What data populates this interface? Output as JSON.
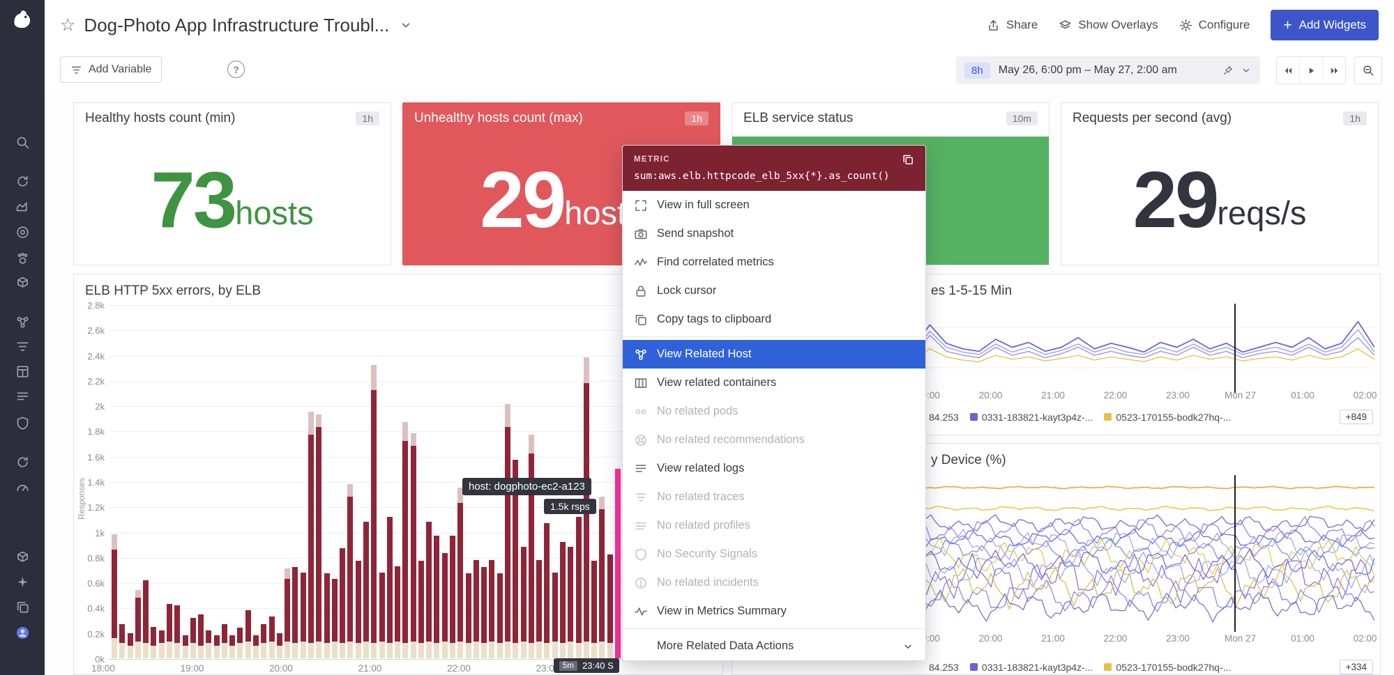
{
  "icons": {
    "star": "☆",
    "help": "?",
    "plus": "+",
    "caret": "▾"
  },
  "header": {
    "title": "Dog-Photo App Infrastructure Troubl...",
    "share": "Share",
    "show_overlays": "Show Overlays",
    "configure": "Configure",
    "add_widgets": "Add Widgets"
  },
  "toolbar": {
    "add_variable": "Add Variable"
  },
  "timebar": {
    "range": "8h",
    "dates": "May 26, 6:00 pm – May 27, 2:00 am"
  },
  "sidebar": {
    "items": [
      "search",
      "watchdog",
      "metrics",
      "monitors",
      "integrations",
      "infrastructure",
      "hosts",
      "apm",
      "dashboards",
      "logs",
      "security",
      "synthetics",
      "rum",
      "organization",
      "upgrade",
      "help-docs",
      "user-account"
    ]
  },
  "tiles": [
    {
      "title": "Healthy hosts count (min)",
      "badge": "1h",
      "value": "73",
      "unit": "hosts"
    },
    {
      "title": "Unhealthy hosts count (max)",
      "badge": "1h",
      "value": "29",
      "unit": "hosts"
    },
    {
      "title": "ELB service status",
      "badge": "10m",
      "value": "",
      "unit": ""
    },
    {
      "title": "Requests per second (avg)",
      "badge": "1h",
      "value": "29",
      "unit": "reqs/s"
    }
  ],
  "menu": {
    "header_label": "METRIC",
    "query": "sum:aws.elb.httpcode_elb_5xx{*}.as_count()",
    "items": [
      {
        "label": "View in full screen",
        "icon": "fullscreen",
        "state": "normal"
      },
      {
        "label": "Send snapshot",
        "icon": "camera",
        "state": "normal"
      },
      {
        "label": "Find correlated metrics",
        "icon": "correlate",
        "state": "normal"
      },
      {
        "label": "Lock cursor",
        "icon": "lock",
        "state": "normal"
      },
      {
        "label": "Copy tags to clipboard",
        "icon": "copy",
        "state": "normal",
        "divider_after": true
      },
      {
        "label": "View Related Host",
        "icon": "host",
        "state": "selected"
      },
      {
        "label": "View related containers",
        "icon": "containers",
        "state": "normal"
      },
      {
        "label": "No related pods",
        "icon": "pods",
        "state": "disabled"
      },
      {
        "label": "No related recommendations",
        "icon": "recommend",
        "state": "disabled"
      },
      {
        "label": "View related logs",
        "icon": "logs",
        "state": "normal"
      },
      {
        "label": "No related traces",
        "icon": "traces",
        "state": "disabled"
      },
      {
        "label": "No related profiles",
        "icon": "profiles",
        "state": "disabled"
      },
      {
        "label": "No Security Signals",
        "icon": "security",
        "state": "disabled"
      },
      {
        "label": "No related incidents",
        "icon": "incidents",
        "state": "disabled"
      },
      {
        "label": "View in Metrics Summary",
        "icon": "metrics",
        "state": "normal",
        "divider_after": true
      },
      {
        "label": "More Related Data Actions",
        "icon": "chevron",
        "state": "more"
      }
    ]
  },
  "chart_5xx": {
    "type": "bar",
    "title": "ELB HTTP 5xx errors, by ELB",
    "ylabel": "Responses",
    "ylim": [
      0,
      2.8
    ],
    "y_ticks": [
      "2.8k",
      "2.6k",
      "2.4k",
      "2.2k",
      "2k",
      "1.8k",
      "1.6k",
      "1.4k",
      "1.2k",
      "1k",
      "0.8k",
      "0.6k",
      "0.4k",
      "0.2k",
      "0k"
    ],
    "x_ticks": [
      "18:00",
      "19:00",
      "20:00",
      "21:00",
      "22:00",
      "23:00"
    ],
    "tooltip": {
      "host": "host: dogphoto-ec2-a123",
      "value": "1.5k rsps",
      "rollup": "5m",
      "time": "23:40 S"
    },
    "colors": {
      "maroon": "#8e2538",
      "cream": "#eadfca",
      "top": "#dcc0c0",
      "highlight": "#ff2f9e"
    },
    "bars_maroon": [
      0.7,
      0.15,
      0.1,
      0.35,
      0.5,
      0.15,
      0.1,
      0.3,
      0.3,
      0.08,
      0.2,
      0.25,
      0.1,
      0.08,
      0.15,
      0.08,
      0.12,
      0.25,
      0.08,
      0.15,
      0.2,
      0.1,
      0.5,
      0.6,
      0.55,
      1.65,
      1.7,
      0.55,
      0.5,
      0.75,
      1.15,
      0.65,
      0.95,
      2.0,
      0.55,
      1.0,
      0.6,
      1.6,
      1.55,
      0.65,
      0.95,
      0.85,
      0.7,
      0.85,
      1.1,
      0.55,
      0.65,
      0.6,
      0.65,
      0.55,
      1.7,
      1.45,
      0.75,
      1.5,
      0.65,
      0.95,
      0.55,
      0.8,
      0.75,
      1.0,
      2.05,
      0.65,
      1.05,
      0.7,
      0
    ],
    "bars_cream": [
      0.16,
      0.12,
      0.1,
      0.13,
      0.12,
      0.1,
      0.12,
      0.13,
      0.12,
      0.1,
      0.12,
      0.1,
      0.12,
      0.1,
      0.12,
      0.1,
      0.12,
      0.13,
      0.1,
      0.12,
      0.13,
      0.1,
      0.13,
      0.12,
      0.13,
      0.12,
      0.13,
      0.12,
      0.13,
      0.12,
      0.13,
      0.12,
      0.13,
      0.12,
      0.13,
      0.12,
      0.13,
      0.12,
      0.13,
      0.12,
      0.13,
      0.12,
      0.13,
      0.12,
      0.13,
      0.12,
      0.13,
      0.12,
      0.13,
      0.12,
      0.13,
      0.12,
      0.13,
      0.12,
      0.13,
      0.12,
      0.13,
      0.12,
      0.13,
      0.12,
      0.13,
      0.12,
      0.13,
      0.12,
      0
    ],
    "bars_top": [
      0.12,
      0,
      0,
      0.06,
      0,
      0,
      0,
      0,
      0,
      0,
      0,
      0,
      0,
      0,
      0,
      0,
      0,
      0,
      0,
      0,
      0,
      0,
      0.08,
      0,
      0,
      0.18,
      0.1,
      0,
      0,
      0,
      0.1,
      0,
      0,
      0.2,
      0,
      0,
      0,
      0.15,
      0.1,
      0,
      0,
      0,
      0,
      0,
      0.12,
      0,
      0,
      0,
      0,
      0,
      0.18,
      0,
      0,
      0.15,
      0,
      0,
      0,
      0,
      0,
      0,
      0.2,
      0,
      0.1,
      0,
      0
    ],
    "highlight": {
      "index": 64,
      "value": 1.5
    }
  },
  "chart_load": {
    "type": "line",
    "title": "es 1-5-15 Min",
    "x_ticks": [
      "19:00",
      "20:00",
      "21:00",
      "22:00",
      "23:00",
      "Mon 27",
      "01:00",
      "02:00"
    ],
    "legend": [
      {
        "label": "84.253",
        "swatch": null
      },
      {
        "label": "0331-183821-kayt3p4z-...",
        "swatch": "#6f5ed8"
      },
      {
        "label": "0523-170155-bodk27hq-...",
        "swatch": "#e2c247"
      }
    ],
    "overflow": "+849",
    "series": [
      {
        "color": "#6a5be0",
        "values": [
          0.52,
          0.4,
          0.58,
          0.35,
          0.5,
          0.3,
          0.55,
          0.48,
          0.38,
          0.6,
          0.15,
          0.5,
          0.22,
          0.45,
          0.52,
          0.55,
          0.4,
          0.5,
          0.44,
          0.55,
          0.5,
          0.38,
          0.52,
          0.45,
          0.5,
          0.56,
          0.44,
          0.5,
          0.4,
          0.52,
          0.45,
          0.56,
          0.5,
          0.44,
          0.5,
          0.38,
          0.52,
          0.45,
          0.18,
          0.5
        ]
      },
      {
        "color": "#9d92ee",
        "values": [
          0.62,
          0.55,
          0.66,
          0.5,
          0.6,
          0.45,
          0.62,
          0.56,
          0.5,
          0.66,
          0.4,
          0.6,
          0.35,
          0.55,
          0.6,
          0.63,
          0.5,
          0.6,
          0.55,
          0.63,
          0.58,
          0.5,
          0.6,
          0.55,
          0.6,
          0.63,
          0.55,
          0.6,
          0.5,
          0.6,
          0.55,
          0.63,
          0.58,
          0.55,
          0.6,
          0.5,
          0.6,
          0.55,
          0.38,
          0.6
        ]
      },
      {
        "color": "#e5c64b",
        "values": [
          0.68,
          0.62,
          0.7,
          0.6,
          0.66,
          0.57,
          0.67,
          0.62,
          0.6,
          0.68,
          0.57,
          0.65,
          0.52,
          0.62,
          0.66,
          0.68,
          0.6,
          0.65,
          0.62,
          0.67,
          0.64,
          0.6,
          0.66,
          0.62,
          0.65,
          0.68,
          0.62,
          0.66,
          0.6,
          0.65,
          0.62,
          0.67,
          0.64,
          0.62,
          0.66,
          0.6,
          0.65,
          0.62,
          0.52,
          0.65
        ]
      },
      {
        "color": "#8fa6f0",
        "values": [
          0.58,
          0.5,
          0.62,
          0.46,
          0.56,
          0.42,
          0.58,
          0.52,
          0.46,
          0.62,
          0.3,
          0.56,
          0.3,
          0.5,
          0.56,
          0.59,
          0.46,
          0.56,
          0.5,
          0.59,
          0.54,
          0.46,
          0.56,
          0.5,
          0.56,
          0.59,
          0.5,
          0.56,
          0.46,
          0.56,
          0.5,
          0.59,
          0.54,
          0.5,
          0.56,
          0.46,
          0.56,
          0.5,
          0.28,
          0.56
        ]
      }
    ]
  },
  "chart_device": {
    "type": "line",
    "title": "y Device (%)",
    "x_ticks": [
      "19:00",
      "20:00",
      "21:00",
      "22:00",
      "23:00",
      "Mon 27",
      "01:00",
      "02:00"
    ],
    "legend": [
      {
        "label": "84.253",
        "swatch": null
      },
      {
        "label": "0331-183821-kayt3p4z-...",
        "swatch": "#6f5ed8"
      },
      {
        "label": "0523-170155-bodk27hq-...",
        "swatch": "#e2c247"
      }
    ],
    "overflow": "+334",
    "series": [
      {
        "color": "#f0a23e",
        "base": 0.06,
        "amp": 0.004,
        "width": 1.6
      },
      {
        "color": "#e8cc4f",
        "base": 0.2,
        "amp": 0.008,
        "width": 1.6
      },
      {
        "color": "#6d5fd6",
        "base": 0.3,
        "amp": 0.03,
        "width": 1.2
      },
      {
        "color": "#8b7fe8",
        "base": 0.35,
        "amp": 0.045,
        "width": 1.2
      },
      {
        "color": "#5a6ad9",
        "base": 0.4,
        "amp": 0.03,
        "width": 1.2
      },
      {
        "color": "#a79df0",
        "base": 0.44,
        "amp": 0.05,
        "width": 1.2
      },
      {
        "color": "#7487e8",
        "base": 0.48,
        "amp": 0.04,
        "width": 1.2
      },
      {
        "color": "#e3c44c",
        "base": 0.52,
        "amp": 0.06,
        "width": 1.2
      },
      {
        "color": "#6d5fd6",
        "base": 0.57,
        "amp": 0.05,
        "width": 1.2
      },
      {
        "color": "#93a7f0",
        "base": 0.61,
        "amp": 0.06,
        "width": 1.2
      },
      {
        "color": "#7a6ee0",
        "base": 0.66,
        "amp": 0.08,
        "width": 1.2
      },
      {
        "color": "#d9bb45",
        "base": 0.72,
        "amp": 0.07,
        "width": 1.2
      },
      {
        "color": "#8b7fe8",
        "base": 0.78,
        "amp": 0.06,
        "width": 1.2
      },
      {
        "color": "#5f6fd0",
        "base": 0.85,
        "amp": 0.05,
        "width": 1.2
      }
    ]
  }
}
